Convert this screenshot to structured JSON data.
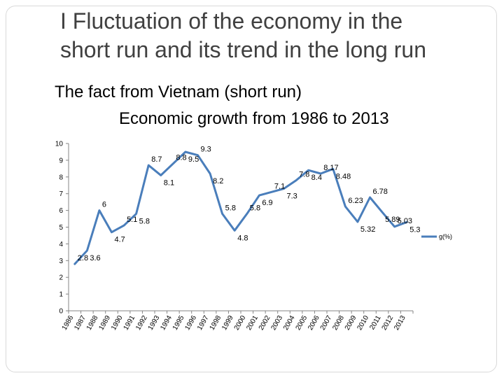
{
  "slide": {
    "title_line1": "I Fluctuation of the economy in the",
    "title_line2": "short run and its trend in the long run",
    "subtitle1": "The fact from Vietnam (short run)",
    "subtitle2": "Economic growth from 1986 to 2013"
  },
  "chart_data": {
    "type": "line",
    "title": "Economic growth from 1986 to 2013",
    "xlabel": "",
    "ylabel": "",
    "ylim": [
      0,
      10
    ],
    "yticks": [
      0,
      1,
      2,
      3,
      4,
      5,
      6,
      7,
      8,
      9,
      10
    ],
    "grid": false,
    "legend_position": "right",
    "color": "#4a7ebb",
    "categories": [
      "1986",
      "1987",
      "1988",
      "1989",
      "1990",
      "1991",
      "1992",
      "1993",
      "1994",
      "1995",
      "1996",
      "1997",
      "1998",
      "1999",
      "2000",
      "2001",
      "2002",
      "2003",
      "2004",
      "2005",
      "2006",
      "2007",
      "2008",
      "2009",
      "2010",
      "2011",
      "2012",
      "2013"
    ],
    "series": [
      {
        "name": "g(%)",
        "values": [
          2.8,
          3.6,
          6,
          4.7,
          5.1,
          5.8,
          8.7,
          8.1,
          8.8,
          9.5,
          9.3,
          8.2,
          5.8,
          4.8,
          5.8,
          6.9,
          7.1,
          7.3,
          7.8,
          8.4,
          8.2,
          8.48,
          6.23,
          5.32,
          6.78,
          5.89,
          5.03,
          5.3
        ],
        "labels": [
          "2.8",
          "3.6",
          "6",
          "4.7",
          "5.1",
          "5.8",
          "8.7",
          "8.1",
          "8.8",
          "9.5",
          "9.3",
          "8.2",
          "5.8",
          "4.8",
          "5.8",
          "6.9",
          "7.1",
          "7.3",
          "7.8",
          "8.4",
          "8.17",
          "8.48",
          "6.23",
          "5.32",
          "6.78",
          "5.89",
          "5.03",
          "5.3"
        ]
      }
    ]
  }
}
